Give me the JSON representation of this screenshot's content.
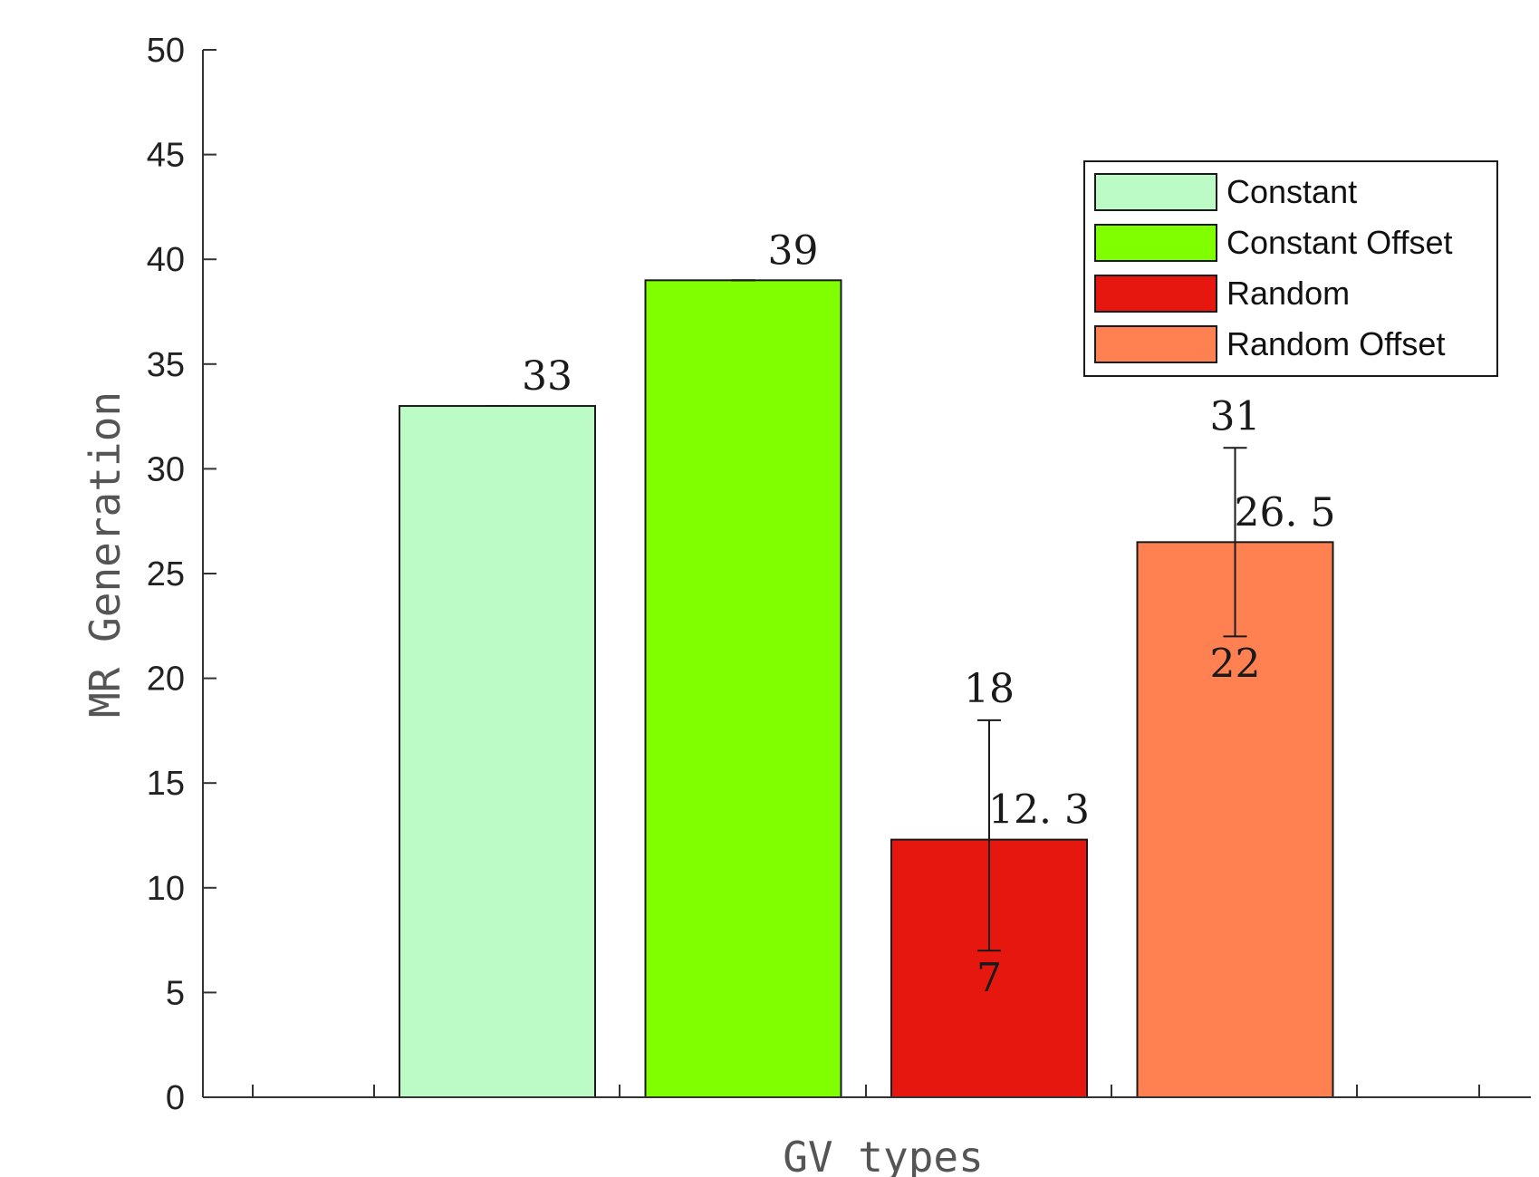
{
  "chart_data": {
    "type": "bar",
    "categories": [
      "Constant",
      "Constant Offset",
      "Random",
      "Random Offset"
    ],
    "values": [
      33,
      39,
      12.3,
      26.5
    ],
    "colors": [
      "#bdfbc6",
      "#80ff00",
      "#e5170e",
      "#ff8050"
    ],
    "value_labels": [
      "33",
      "39",
      "12. 3",
      "26. 5"
    ],
    "error_bars": [
      {
        "low": 33,
        "high": 33,
        "low_label": "",
        "high_label": ""
      },
      {
        "low": 39,
        "high": 39,
        "low_label": "",
        "high_label": ""
      },
      {
        "low": 7,
        "high": 18,
        "low_label": "7",
        "high_label": "18"
      },
      {
        "low": 22,
        "high": 31,
        "low_label": "22",
        "high_label": "31"
      }
    ],
    "xlabel": "GV types",
    "ylabel": "MR Generation",
    "ylim": [
      0,
      50
    ],
    "yticks": [
      0,
      5,
      10,
      15,
      20,
      25,
      30,
      35,
      40,
      45,
      50
    ],
    "grid": false,
    "legend": {
      "position": "top-right",
      "entries": [
        "Constant",
        "Constant Offset",
        "Random",
        "Random Offset"
      ]
    }
  }
}
